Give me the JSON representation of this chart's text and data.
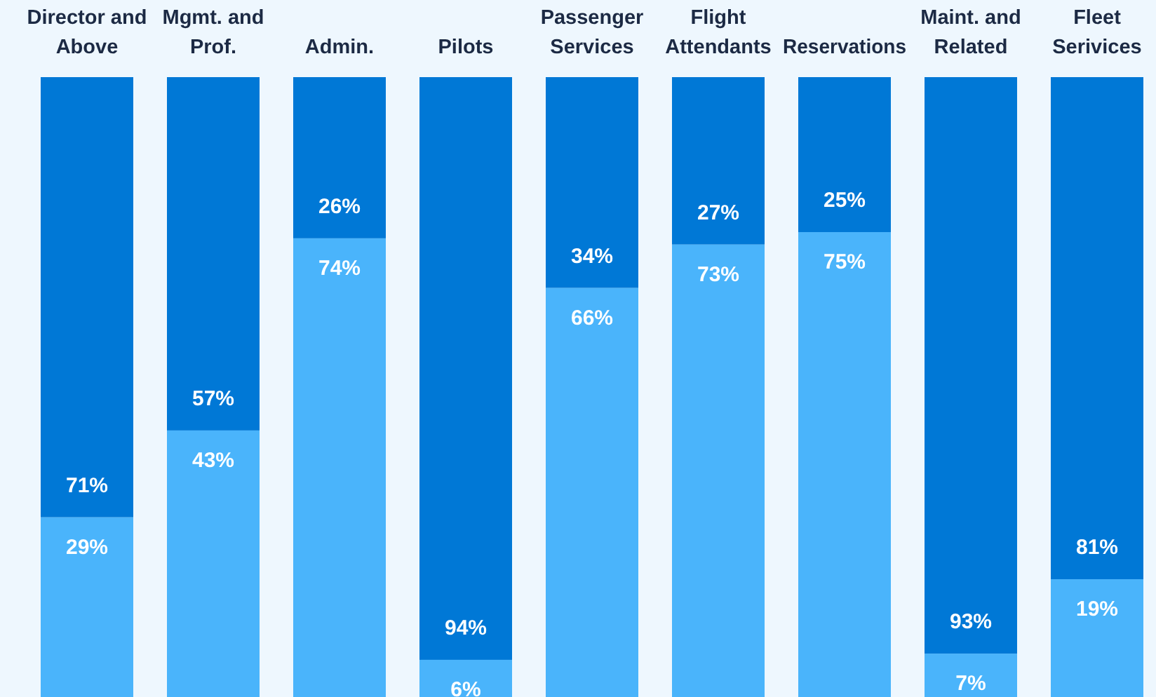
{
  "chart_data": {
    "type": "bar",
    "stacked": true,
    "ylim": [
      0,
      100
    ],
    "tick_labels": false,
    "categories": [
      "Director and Above",
      "Mgmt. and Prof.",
      "Admin.",
      "Pilots",
      "Passenger Services",
      "Flight Attendants",
      "Reservations",
      "Maint. and Related",
      "Fleet Serivices"
    ],
    "series": [
      {
        "color": "#4ab4fb",
        "values": [
          29,
          43,
          74,
          6,
          66,
          73,
          75,
          7,
          19
        ],
        "value_labels": [
          "29%",
          "43%",
          "74%",
          "6%",
          "66%",
          "73%",
          "75%",
          "7%",
          "19%"
        ]
      },
      {
        "color": "#0078d6",
        "values": [
          71,
          57,
          26,
          94,
          34,
          27,
          25,
          93,
          81
        ],
        "value_labels": [
          "71%",
          "57%",
          "26%",
          "94%",
          "34%",
          "27%",
          "25%",
          "93%",
          "81%"
        ]
      }
    ]
  }
}
